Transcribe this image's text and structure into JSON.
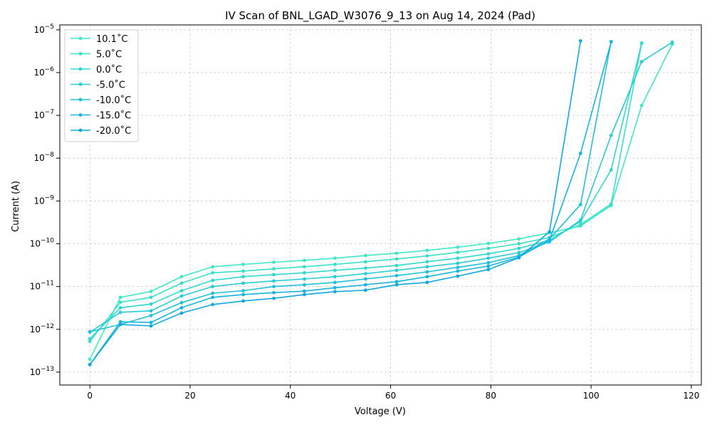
{
  "chart_data": {
    "type": "line",
    "title": "IV Scan of BNL_LGAD_W3076_9_13 on Aug 14, 2024 (Pad)",
    "xlabel": "Voltage (V)",
    "ylabel": "Current (A)",
    "xlim": [
      -6,
      122
    ],
    "ylim": [
      5e-14,
      1.3e-05
    ],
    "yscale": "log",
    "grid": true,
    "legend_position": "top-left",
    "x_ticks": [
      0,
      20,
      40,
      60,
      80,
      100,
      120
    ],
    "x_tick_labels": [
      "0",
      "20",
      "40",
      "60",
      "80",
      "100",
      "120"
    ],
    "y_ticks": [
      1e-13,
      1e-12,
      1e-11,
      1e-10,
      1e-09,
      1e-08,
      1e-07,
      1e-06,
      1e-05
    ],
    "y_tick_labels": [
      {
        "base": "10",
        "exp": "−13"
      },
      {
        "base": "10",
        "exp": "−12"
      },
      {
        "base": "10",
        "exp": "−11"
      },
      {
        "base": "10",
        "exp": "−10"
      },
      {
        "base": "10",
        "exp": "−9"
      },
      {
        "base": "10",
        "exp": "−8"
      },
      {
        "base": "10",
        "exp": "−7"
      },
      {
        "base": "10",
        "exp": "−6"
      },
      {
        "base": "10",
        "exp": "−5"
      }
    ],
    "series": [
      {
        "name": "10.1$^\\circ$C",
        "legend_label": "10.1˚C",
        "color": "#40e8c8",
        "x": [
          0,
          6.1,
          12.2,
          18.3,
          24.5,
          30.6,
          36.7,
          42.8,
          48.9,
          55.0,
          61.2,
          67.3,
          73.4,
          79.5,
          85.6,
          91.7,
          97.9,
          104.0,
          110.1,
          116.2
        ],
        "y": [
          2e-13,
          5.6e-12,
          7.7e-12,
          1.7e-11,
          2.9e-11,
          3.3e-11,
          3.7e-11,
          4.1e-11,
          4.6e-11,
          5.3e-11,
          6e-11,
          7e-11,
          8.3e-11,
          1.02e-10,
          1.3e-10,
          1.8e-10,
          2.6e-10,
          7.8e-10,
          1.7e-07,
          4.6e-06
        ]
      },
      {
        "name": "5.0˚C",
        "legend_label": "5.0˚C",
        "color": "#38e0c8",
        "x": [
          0,
          6.1,
          12.2,
          18.3,
          24.5,
          30.6,
          36.7,
          42.8,
          48.9,
          55.0,
          61.2,
          67.3,
          73.4,
          79.5,
          85.6,
          91.7,
          97.9,
          104.0,
          110.1
        ],
        "y": [
          5.2e-13,
          4.3e-12,
          5.6e-12,
          1.2e-11,
          2.1e-11,
          2.3e-11,
          2.6e-11,
          2.9e-11,
          3.3e-11,
          3.8e-11,
          4.4e-11,
          5.2e-11,
          6.3e-11,
          7.8e-11,
          1e-10,
          1.4e-10,
          2.8e-10,
          8.5e-10,
          4.8e-06
        ]
      },
      {
        "name": "0.0˚C",
        "legend_label": "0.0˚C",
        "color": "#30d8d0",
        "x": [
          0,
          6.1,
          12.2,
          18.3,
          24.5,
          30.6,
          36.7,
          42.8,
          48.9,
          55.0,
          61.2,
          67.3,
          73.4,
          79.5,
          85.6,
          91.7,
          97.9,
          104.0,
          110.1
        ],
        "y": [
          6e-13,
          3.2e-12,
          3.9e-12,
          8e-12,
          1.4e-11,
          1.7e-11,
          1.9e-11,
          2.1e-11,
          2.4e-11,
          2.7e-11,
          3.1e-11,
          3.8e-11,
          4.6e-11,
          5.8e-11,
          7.8e-11,
          1.2e-10,
          3.3e-10,
          5.3e-09,
          4.9e-06
        ]
      },
      {
        "name": "-5.0˚C",
        "legend_label": "-5.0˚C",
        "color": "#28ccd8",
        "x": [
          0,
          6.1,
          12.2,
          18.3,
          24.5,
          30.6,
          36.7,
          42.8,
          48.9,
          55.0,
          61.2,
          67.3,
          73.4,
          79.5,
          85.6,
          91.7,
          97.9,
          104.0,
          110.1,
          116.2
        ],
        "y": [
          8.6e-13,
          2.5e-12,
          2.7e-12,
          6e-12,
          1e-11,
          1.2e-11,
          1.35e-11,
          1.5e-11,
          1.7e-11,
          2e-11,
          2.4e-11,
          2.9e-11,
          3.5e-11,
          4.6e-11,
          6.2e-11,
          1.1e-10,
          3.6e-10,
          3.4e-08,
          1.8e-06,
          5.1e-06
        ]
      },
      {
        "name": "-10.0˚C",
        "legend_label": "-10.0˚C",
        "color": "#20c0dc",
        "x": [
          0,
          6.1,
          12.2,
          18.3,
          24.5,
          30.6,
          36.7,
          42.8,
          48.9,
          55.0,
          61.2,
          67.3,
          73.4,
          79.5,
          85.6,
          91.7,
          97.9,
          104.0
        ],
        "y": [
          8.8e-13,
          1.3e-12,
          2.1e-12,
          4.2e-12,
          7e-12,
          8e-12,
          1e-11,
          1.1e-11,
          1.25e-11,
          1.5e-11,
          1.8e-11,
          2.2e-11,
          2.8e-11,
          3.6e-11,
          5.3e-11,
          1.3e-10,
          8.2e-10,
          5.3e-06
        ]
      },
      {
        "name": "-15.0˚C",
        "legend_label": "-15.0˚C",
        "color": "#18b4e0",
        "x": [
          0,
          6.1,
          12.2,
          18.3,
          24.5,
          30.6,
          36.7,
          42.8,
          48.9,
          55.0,
          61.2,
          67.3,
          73.4,
          79.5,
          85.6,
          91.7,
          97.9,
          104.0
        ],
        "y": [
          1.5e-13,
          1.5e-12,
          1.45e-12,
          3.2e-12,
          5.6e-12,
          6.5e-12,
          7.2e-12,
          7.8e-12,
          9.4e-12,
          1.1e-11,
          1.3e-11,
          1.7e-11,
          2.3e-11,
          3e-11,
          4.9e-11,
          1.2e-10,
          1.3e-08,
          5.2e-06
        ]
      },
      {
        "name": "-20.0˚C",
        "legend_label": "-20.0˚C",
        "color": "#10a8e0",
        "x": [
          0,
          6.1,
          12.2,
          18.3,
          24.5,
          30.6,
          36.7,
          42.8,
          48.9,
          55.0,
          61.2,
          67.3,
          73.4,
          79.5,
          85.6,
          91.7,
          97.9
        ],
        "y": [
          1.5e-13,
          1.3e-12,
          1.2e-12,
          2.4e-12,
          3.8e-12,
          4.6e-12,
          5.3e-12,
          6.5e-12,
          7.6e-12,
          8.2e-12,
          1.1e-11,
          1.25e-11,
          1.75e-11,
          2.5e-11,
          4.7e-11,
          1.9e-10,
          5.5e-06
        ]
      }
    ]
  }
}
